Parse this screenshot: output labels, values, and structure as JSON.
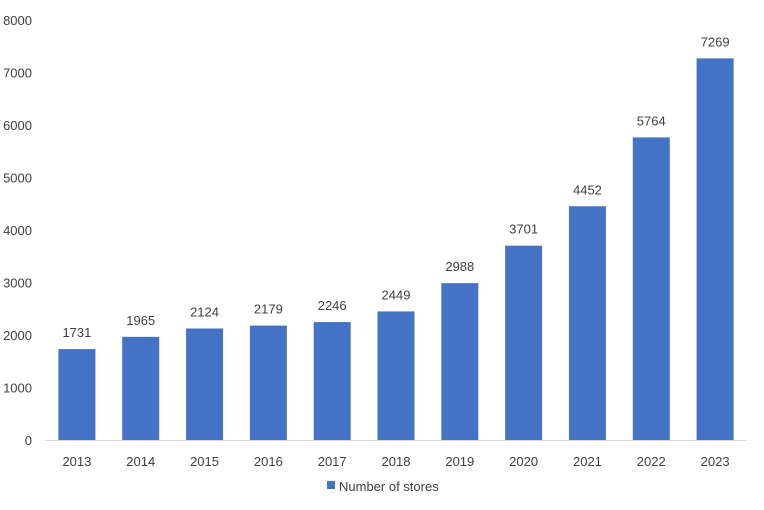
{
  "chart_data": {
    "type": "bar",
    "categories": [
      "2013",
      "2014",
      "2015",
      "2016",
      "2017",
      "2018",
      "2019",
      "2020",
      "2021",
      "2022",
      "2023"
    ],
    "series": [
      {
        "name": "Number of stores",
        "values": [
          1731,
          1965,
          2124,
          2179,
          2246,
          2449,
          2988,
          3701,
          4452,
          5764,
          7269
        ]
      }
    ],
    "title": "",
    "xlabel": "",
    "ylabel": "",
    "ylim": [
      0,
      8000
    ],
    "yticks": [
      "0",
      "1000",
      "2000",
      "3000",
      "4000",
      "5000",
      "6000",
      "7000",
      "8000"
    ],
    "data_labels": [
      "1731",
      "1965",
      "2124",
      "2179",
      "2246",
      "2449",
      "2988",
      "3701",
      "4452",
      "5764",
      "7269"
    ],
    "grid": false,
    "legend": "bottom-center",
    "colors": {
      "bar": "#4472C4",
      "axis": "#D9D9D9",
      "text": "#404040"
    }
  }
}
